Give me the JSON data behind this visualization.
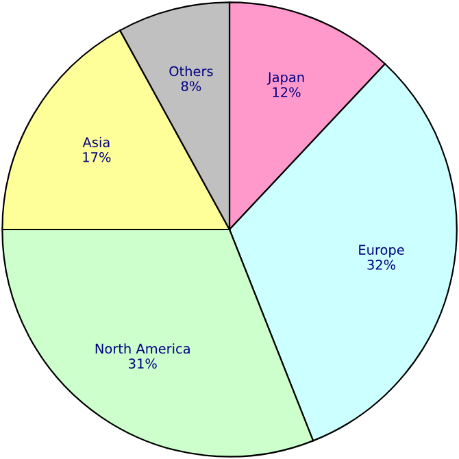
{
  "chart_data": {
    "type": "pie",
    "categories": [
      "Japan",
      "Europe",
      "North America",
      "Asia",
      "Others"
    ],
    "values": [
      12,
      32,
      31,
      17,
      8
    ],
    "colors": [
      "#ff99cc",
      "#ccffff",
      "#ccffcc",
      "#ffff99",
      "#c0c0c0"
    ],
    "value_labels": [
      "12%",
      "32%",
      "31%",
      "17%",
      "8%"
    ]
  }
}
